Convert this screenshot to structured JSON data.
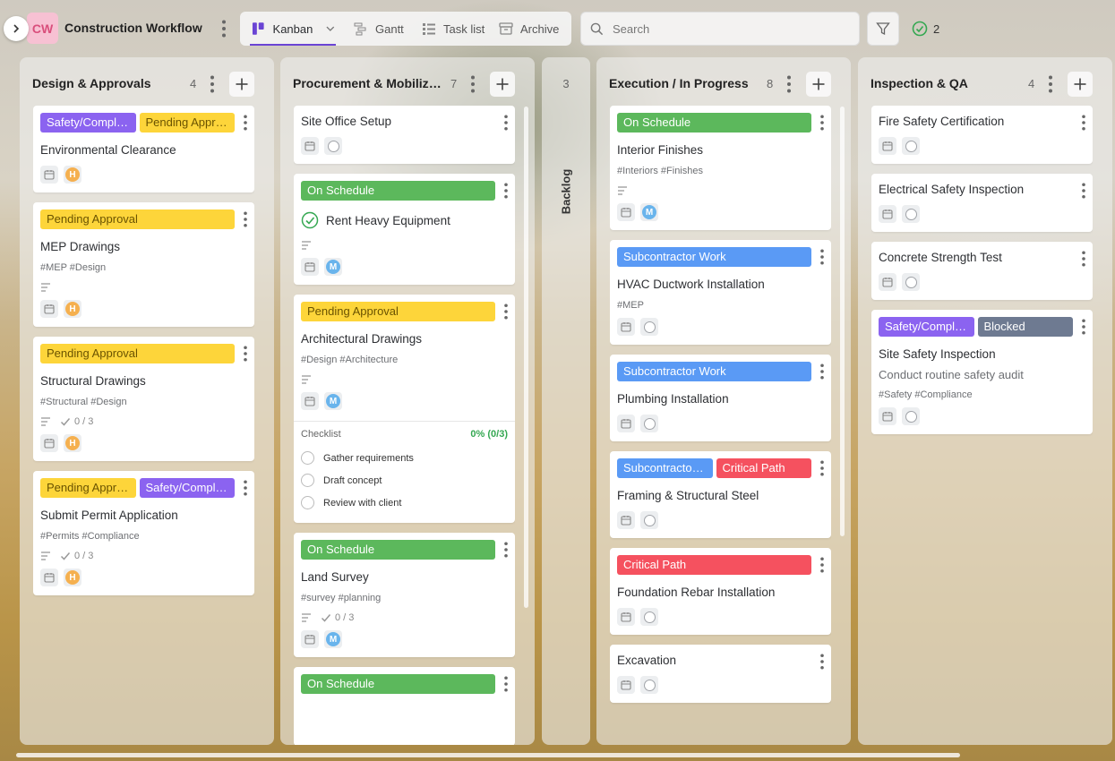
{
  "workspace": {
    "initials": "CW",
    "title": "Construction Workflow"
  },
  "views": [
    {
      "label": "Kanban",
      "icon": "kanban-icon"
    },
    {
      "label": "Gantt",
      "icon": "gantt-icon"
    },
    {
      "label": "Task list",
      "icon": "list-icon"
    },
    {
      "label": "Archive",
      "icon": "archive-icon"
    }
  ],
  "search": {
    "placeholder": "Search",
    "value": ""
  },
  "completed_count": "2",
  "colors": {
    "safety": "#8b63f0",
    "pending": "#fdd53a",
    "on_schedule": "#5cb85c",
    "subcontractor": "#5a9af5",
    "critical": "#f5515f",
    "blocked": "#6e7a91",
    "accent": "#6a44d4",
    "avatar_h": "#f5b04f",
    "avatar_m": "#69b4ec"
  },
  "columns": {
    "design": {
      "title": "Design & Approvals",
      "count": "4"
    },
    "procurement": {
      "title": "Procurement & Mobilization",
      "count": "7"
    },
    "backlog": {
      "title": "Backlog",
      "count": "3"
    },
    "execution": {
      "title": "Execution / In Progress",
      "count": "8"
    },
    "inspection": {
      "title": "Inspection & QA",
      "count": "4"
    }
  },
  "cards": {
    "d1": {
      "tags": [
        "Safety/Compliance",
        "Pending Approval"
      ],
      "title": "Environmental Clearance",
      "avatar": "H"
    },
    "d2": {
      "tags": [
        "Pending Approval"
      ],
      "title": "MEP Drawings",
      "hashtags": "#MEP #Design",
      "avatar": "H"
    },
    "d3": {
      "tags": [
        "Pending Approval"
      ],
      "title": "Structural Drawings",
      "hashtags": "#Structural #Design",
      "checks": "0 / 3",
      "avatar": "H"
    },
    "d4": {
      "tags": [
        "Pending Approval",
        "Safety/Compliance"
      ],
      "title": "Submit Permit Application",
      "hashtags": "#Permits #Compliance",
      "checks": "0 / 3",
      "avatar": "H"
    },
    "p1": {
      "title": "Site Office Setup"
    },
    "p2": {
      "tags": [
        "On Schedule"
      ],
      "title": "Rent Heavy Equipment",
      "avatar": "M"
    },
    "p3": {
      "tags": [
        "Pending Approval"
      ],
      "title": "Architectural Drawings",
      "hashtags": "#Design #Architecture",
      "avatar": "M",
      "checklist": {
        "label": "Checklist",
        "progress": "0% (0/3)",
        "items": [
          "Gather requirements",
          "Draft concept",
          "Review with client"
        ]
      }
    },
    "p4": {
      "tags": [
        "On Schedule"
      ],
      "title": "Land Survey",
      "hashtags": "#survey #planning",
      "checks": "0 / 3",
      "avatar": "M"
    },
    "p5": {
      "tags": [
        "On Schedule"
      ]
    },
    "e1": {
      "tags": [
        "On Schedule"
      ],
      "title": "Interior Finishes",
      "hashtags": "#Interiors #Finishes",
      "avatar": "M"
    },
    "e2": {
      "tags": [
        "Subcontractor Work"
      ],
      "title": "HVAC Ductwork Installation",
      "hashtags": "#MEP"
    },
    "e3": {
      "tags": [
        "Subcontractor Work"
      ],
      "title": "Plumbing Installation"
    },
    "e4": {
      "tags": [
        "Subcontractor Work",
        "Critical Path"
      ],
      "title": "Framing & Structural Steel"
    },
    "e5": {
      "tags": [
        "Critical Path"
      ],
      "title": "Foundation Rebar Installation"
    },
    "e6": {
      "title": "Excavation"
    },
    "i1": {
      "title": "Fire Safety Certification"
    },
    "i2": {
      "title": "Electrical Safety Inspection"
    },
    "i3": {
      "title": "Concrete Strength Test"
    },
    "i4": {
      "tags": [
        "Safety/Compliance",
        "Blocked"
      ],
      "title": "Site Safety Inspection",
      "description": "Conduct routine safety audit",
      "hashtags": "#Safety #Compliance"
    }
  }
}
